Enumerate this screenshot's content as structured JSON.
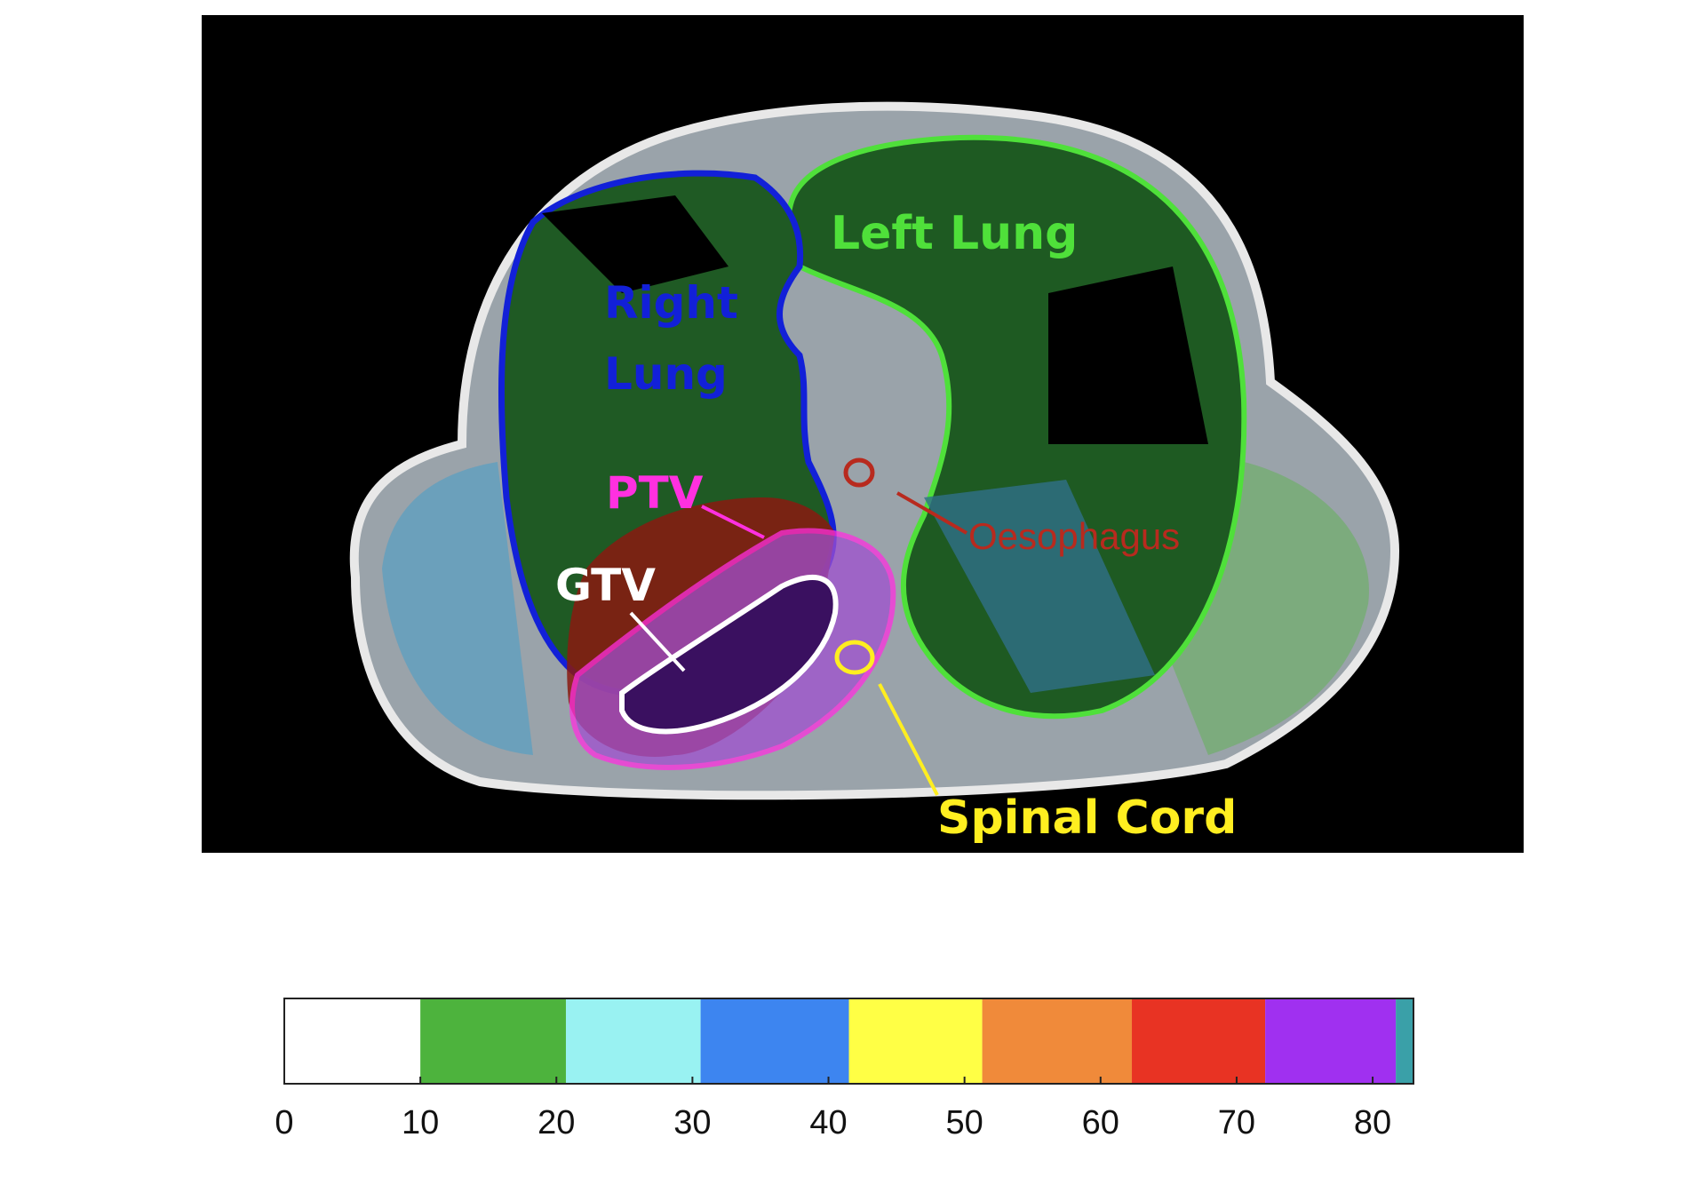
{
  "figure": {
    "labels": {
      "left_lung": "Left Lung",
      "right_lung": [
        "Right",
        "Lung"
      ],
      "ptv": "PTV",
      "gtv": "GTV",
      "oesophagus": "Oesophagus",
      "spinal_cord": "Spinal Cord"
    }
  },
  "colorbar": {
    "lim": [
      0,
      83
    ],
    "ticks": [
      0,
      10,
      20,
      30,
      40,
      50,
      60,
      70,
      80
    ],
    "bands": [
      {
        "from": 0,
        "to": 10,
        "color": "#ffffff"
      },
      {
        "from": 10,
        "to": 20.7,
        "color": "#4db33d"
      },
      {
        "from": 20.7,
        "to": 30.6,
        "color": "#99f2f2"
      },
      {
        "from": 30.6,
        "to": 41.5,
        "color": "#3d85f0"
      },
      {
        "from": 41.5,
        "to": 51.3,
        "color": "#ffff45"
      },
      {
        "from": 51.3,
        "to": 62.3,
        "color": "#f08a3a"
      },
      {
        "from": 62.3,
        "to": 72.1,
        "color": "#e83323"
      },
      {
        "from": 72.1,
        "to": 81.7,
        "color": "#a030f0"
      },
      {
        "from": 81.7,
        "to": 83,
        "color": "#3aa0a8"
      }
    ]
  }
}
